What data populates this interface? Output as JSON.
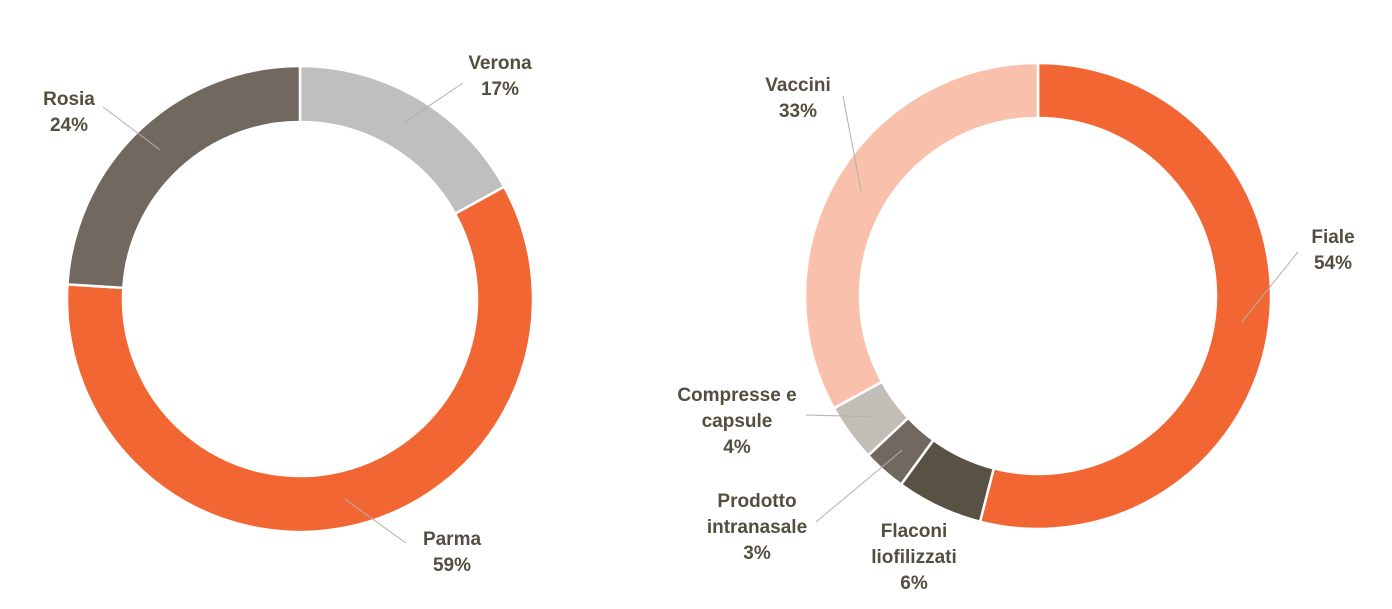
{
  "chart_data": [
    {
      "type": "pie",
      "donut": true,
      "categories": [
        "Verona",
        "Parma",
        "Rosia"
      ],
      "values": [
        17,
        59,
        24
      ],
      "value_labels": [
        "17%",
        "59%",
        "24%"
      ],
      "colors": [
        "#BFBFBF",
        "#F26633",
        "#716860"
      ],
      "legend": "none"
    },
    {
      "type": "pie",
      "donut": true,
      "categories": [
        "Fiale",
        "Flaconi liofilizzati",
        "Prodotto intranasale",
        "Compresse e capsule",
        "Vaccini"
      ],
      "values": [
        54,
        6,
        3,
        4,
        33
      ],
      "value_labels": [
        "54%",
        "6%",
        "3%",
        "4%",
        "33%"
      ],
      "colors": [
        "#F26633",
        "#585244",
        "#716860",
        "#C2BDB7",
        "#F9C0AC"
      ],
      "legend": "none"
    }
  ]
}
